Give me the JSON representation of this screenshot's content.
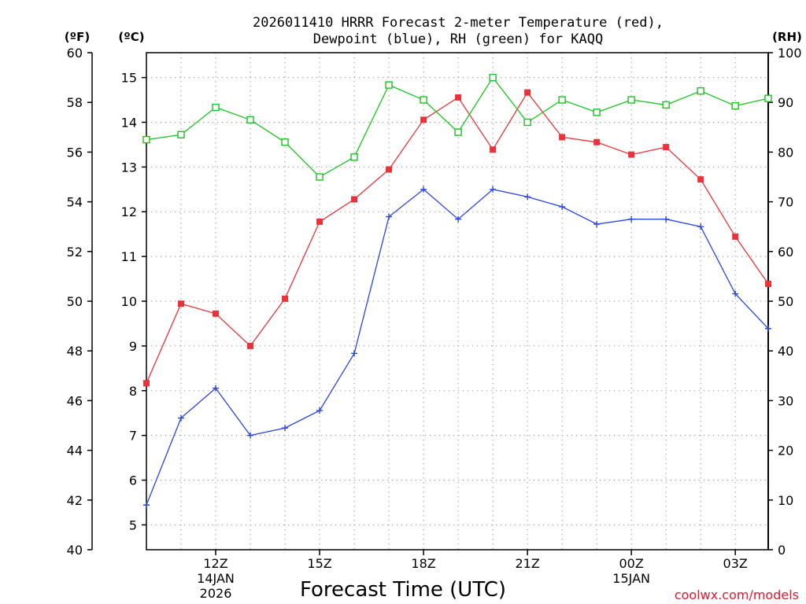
{
  "title_lines": [
    "2026011410 HRRR Forecast 2-meter Temperature (red),",
    "Dewpoint (blue), RH (green) for KAQQ"
  ],
  "units": {
    "fahrenheit": "(ºF)",
    "celsius": "(ºC)",
    "rh": "(RH)"
  },
  "credit": "coolwx.com/models",
  "colors": {
    "temperature": "#e8333a",
    "dewpoint": "#2a45e0",
    "rh": "#19c41f",
    "grid": "#8f8f8f",
    "axis": "#000000",
    "credit": "#e0182d"
  },
  "chart_data": {
    "type": "line",
    "title": "2026011410 HRRR Forecast 2-meter Temperature (red), Dewpoint (blue), RH (green) for KAQQ",
    "xlabel": "Forecast Time (UTC)",
    "x": [
      "10Z",
      "11Z",
      "12Z",
      "13Z",
      "14Z",
      "15Z",
      "16Z",
      "17Z",
      "18Z",
      "19Z",
      "20Z",
      "21Z",
      "22Z",
      "23Z",
      "00Z",
      "01Z",
      "02Z",
      "03Z",
      "04Z"
    ],
    "x_hours_from_12z": [
      -2,
      -1,
      0,
      1,
      2,
      3,
      4,
      5,
      6,
      7,
      8,
      9,
      10,
      11,
      12,
      13,
      14,
      15,
      15.95
    ],
    "x_ticks": [
      {
        "hour": 0,
        "lines": [
          "12Z",
          "14JAN",
          "2026"
        ]
      },
      {
        "hour": 3,
        "lines": [
          "15Z"
        ]
      },
      {
        "hour": 6,
        "lines": [
          "18Z"
        ]
      },
      {
        "hour": 9,
        "lines": [
          "21Z"
        ]
      },
      {
        "hour": 12,
        "lines": [
          "00Z",
          "15JAN"
        ]
      },
      {
        "hour": 15,
        "lines": [
          "03Z"
        ]
      }
    ],
    "xlim_hours": [
      -2,
      15.95
    ],
    "fahrenheit_axis": {
      "range": [
        40,
        60
      ],
      "ticks": [
        "40",
        "42",
        "44",
        "46",
        "48",
        "50",
        "52",
        "54",
        "56",
        "58",
        "60"
      ]
    },
    "celsius_axis": {
      "ticks": [
        "5",
        "6",
        "7",
        "8",
        "9",
        "10",
        "11",
        "12",
        "13",
        "14",
        "15"
      ]
    },
    "rh_axis": {
      "range": [
        0,
        100
      ],
      "ticks": [
        "0",
        "10",
        "20",
        "30",
        "40",
        "50",
        "60",
        "70",
        "80",
        "90",
        "100"
      ]
    },
    "series": [
      {
        "name": "Temperature",
        "axis": "fahrenheit",
        "marker": "filled-square",
        "values": [
          46.7,
          49.9,
          49.5,
          48.2,
          50.1,
          53.2,
          54.1,
          55.3,
          57.3,
          58.2,
          56.1,
          58.4,
          56.6,
          56.4,
          55.9,
          56.2,
          54.9,
          52.6,
          50.7
        ]
      },
      {
        "name": "Dewpoint",
        "axis": "fahrenheit",
        "marker": "plus",
        "values": [
          41.8,
          45.3,
          46.5,
          44.6,
          44.9,
          45.6,
          47.9,
          53.4,
          54.5,
          53.3,
          54.5,
          54.2,
          53.8,
          53.1,
          53.3,
          53.3,
          53.0,
          50.3,
          48.9
        ]
      },
      {
        "name": "RH",
        "axis": "rh",
        "marker": "open-square",
        "values": [
          82.5,
          83.5,
          89.0,
          86.5,
          82.0,
          75.0,
          79.0,
          93.5,
          90.5,
          84.0,
          95.0,
          86.0,
          90.5,
          88.0,
          90.5,
          89.5,
          92.3,
          89.3,
          90.8
        ]
      }
    ]
  }
}
